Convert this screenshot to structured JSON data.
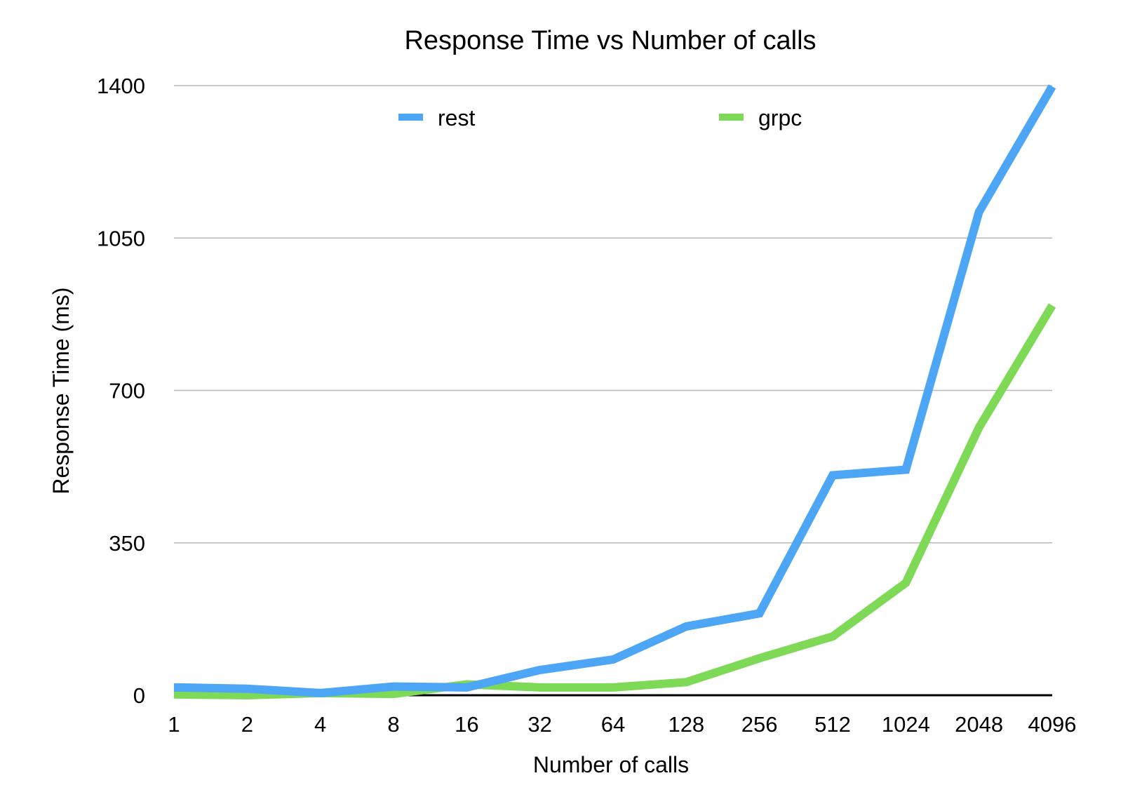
{
  "chart_data": {
    "type": "line",
    "title": "Response Time vs Number of calls",
    "xlabel": "Number of calls",
    "ylabel": "Response Time (ms)",
    "categories": [
      "1",
      "2",
      "4",
      "8",
      "16",
      "32",
      "64",
      "128",
      "256",
      "512",
      "1024",
      "2048",
      "4096"
    ],
    "ylim": [
      0,
      1400
    ],
    "yticks": [
      "0",
      "350",
      "700",
      "1050",
      "1400"
    ],
    "grid": true,
    "legend_position": "top",
    "series": [
      {
        "name": "rest",
        "color": "#4da6f5",
        "values": [
          18,
          15,
          5,
          20,
          18,
          58,
          82,
          158,
          188,
          505,
          518,
          1110,
          1398
        ]
      },
      {
        "name": "grpc",
        "color": "#7ed957",
        "values": [
          2,
          0,
          5,
          3,
          25,
          18,
          18,
          30,
          85,
          135,
          258,
          615,
          895
        ]
      }
    ]
  }
}
